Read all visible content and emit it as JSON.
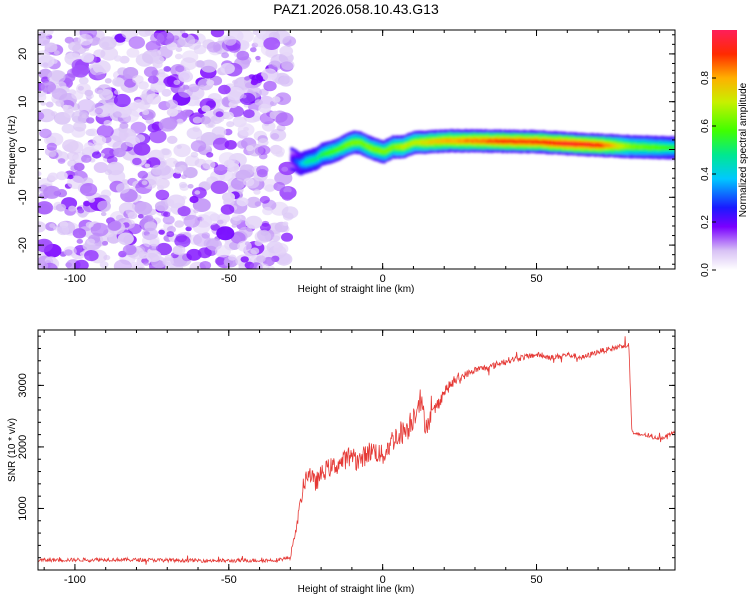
{
  "title": "PAZ1.2026.058.10.43.G13",
  "chart_data": [
    {
      "type": "heatmap",
      "name": "spectrogram",
      "xlabel": "Height of straight line (km)",
      "ylabel": "Frequency (Hz)",
      "xlim": [
        -112,
        95
      ],
      "ylim": [
        -25,
        25
      ],
      "xticks": [
        -100,
        -50,
        0,
        50
      ],
      "yticks": [
        -20,
        -10,
        0,
        10,
        20
      ],
      "colorbar": {
        "label": "Normalized spectral amplitude",
        "range": [
          0.0,
          1.0
        ],
        "ticks": [
          0.0,
          0.2,
          0.4,
          0.6,
          0.8
        ],
        "ticklabels": [
          "0.0",
          "0.2",
          "0.4",
          "0.6",
          "0.8"
        ]
      },
      "noise_region_x": [
        -112,
        -30
      ],
      "signal_track": {
        "x": [
          -30,
          -27,
          -25,
          -22,
          -20,
          -17,
          -15,
          -12,
          -10,
          -8,
          -5,
          -3,
          0,
          3,
          6,
          8,
          10,
          13,
          20,
          30,
          40,
          50,
          60,
          70,
          80,
          90,
          95
        ],
        "freq": [
          -2.0,
          -3.0,
          -2.5,
          -2.0,
          -1.0,
          -0.5,
          0.0,
          1.0,
          1.5,
          1.5,
          0.5,
          0.0,
          -0.5,
          0.5,
          0.5,
          1.0,
          1.5,
          1.5,
          1.8,
          1.8,
          1.7,
          1.6,
          1.2,
          0.9,
          0.6,
          0.4,
          0.3
        ],
        "amp": [
          0.2,
          0.35,
          0.45,
          0.45,
          0.5,
          0.55,
          0.55,
          0.6,
          0.6,
          0.6,
          0.6,
          0.6,
          0.6,
          0.6,
          0.65,
          0.65,
          0.65,
          0.7,
          0.75,
          0.8,
          0.85,
          0.85,
          0.9,
          0.85,
          0.6,
          0.55,
          0.5
        ]
      }
    },
    {
      "type": "line",
      "name": "snr",
      "xlabel": "Height of straight line (km)",
      "ylabel": "SNR (10 * v/v)",
      "xlim": [
        -112,
        95
      ],
      "ylim": [
        0,
        3900
      ],
      "xticks": [
        -100,
        -50,
        0,
        50
      ],
      "yticks": [
        1000,
        2000,
        3000
      ],
      "color": "#e53935",
      "series": [
        {
          "name": "SNR",
          "x": [
            -112,
            -90,
            -70,
            -50,
            -35,
            -30,
            -28,
            -26,
            -25,
            -24,
            -22,
            -20,
            -18,
            -15,
            -12,
            -10,
            -8,
            -5,
            -3,
            0,
            3,
            5,
            8,
            10,
            12,
            14,
            16,
            18,
            20,
            23,
            26,
            30,
            35,
            40,
            45,
            50,
            55,
            60,
            65,
            70,
            75,
            78,
            80,
            81,
            82,
            85,
            88,
            91,
            95
          ],
          "y": [
            160,
            170,
            160,
            150,
            160,
            200,
            700,
            1300,
            1500,
            1600,
            1400,
            1550,
            1650,
            1700,
            1800,
            1900,
            1750,
            1900,
            1950,
            1850,
            2100,
            2200,
            2300,
            2500,
            2800,
            2350,
            2500,
            2700,
            2900,
            3050,
            3150,
            3250,
            3300,
            3400,
            3450,
            3500,
            3450,
            3500,
            3450,
            3550,
            3600,
            3650,
            3650,
            2250,
            2200,
            2200,
            2150,
            2150,
            2250
          ],
          "noise": [
            60,
            60,
            60,
            60,
            60,
            60,
            120,
            280,
            300,
            300,
            300,
            300,
            300,
            320,
            320,
            340,
            340,
            350,
            350,
            350,
            380,
            400,
            420,
            450,
            450,
            350,
            300,
            230,
            200,
            150,
            130,
            110,
            110,
            100,
            100,
            90,
            90,
            90,
            90,
            90,
            90,
            90,
            90,
            60,
            60,
            60,
            60,
            60,
            60
          ]
        }
      ]
    }
  ]
}
